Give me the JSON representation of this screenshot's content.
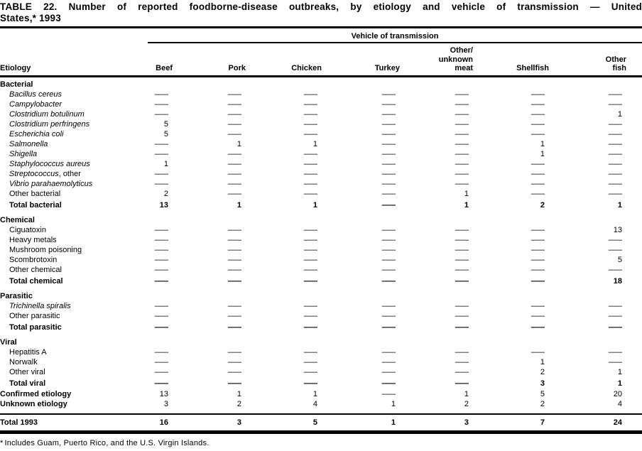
{
  "title": {
    "line1": "TABLE 22. Number of reported foodborne-disease outbreaks, by etiology and vehicle of transmission — United",
    "line2": "States,* 1993"
  },
  "footnote": {
    "marker": "*",
    "text": "Includes Guam, Puerto Rico, and the U.S. Virgin Islands."
  },
  "table": {
    "span_header": "Vehicle of transmission",
    "row_header": "Etiology",
    "columns": [
      {
        "key": "beef",
        "lines": [
          "Beef"
        ]
      },
      {
        "key": "pork",
        "lines": [
          "Pork"
        ]
      },
      {
        "key": "chicken",
        "lines": [
          "Chicken"
        ]
      },
      {
        "key": "turkey",
        "lines": [
          "Turkey"
        ]
      },
      {
        "key": "other-unknown-meat",
        "lines": [
          "Other/",
          "unknown",
          "meat"
        ]
      },
      {
        "key": "shellfish",
        "lines": [
          "Shellfish"
        ]
      },
      {
        "key": "other-fish",
        "lines": [
          "Other",
          "fish"
        ]
      }
    ],
    "sections": [
      {
        "header": "Bacterial",
        "rows": [
          {
            "italic": "Bacillus cereus",
            "roman": "",
            "total": false,
            "values": [
              "—",
              "—",
              "—",
              "—",
              "—",
              "—",
              "—"
            ]
          },
          {
            "italic": "Campylobacter",
            "roman": "",
            "total": false,
            "values": [
              "—",
              "—",
              "—",
              "—",
              "—",
              "—",
              "—"
            ]
          },
          {
            "italic": "Clostridium botulinum",
            "roman": "",
            "total": false,
            "values": [
              "—",
              "—",
              "—",
              "—",
              "—",
              "—",
              "1"
            ]
          },
          {
            "italic": "Clostridium perfringens",
            "roman": "",
            "total": false,
            "values": [
              "5",
              "—",
              "—",
              "—",
              "—",
              "—",
              "—"
            ]
          },
          {
            "italic": "Escherichia coli",
            "roman": "",
            "total": false,
            "values": [
              "5",
              "—",
              "—",
              "—",
              "—",
              "—",
              "—"
            ]
          },
          {
            "italic": "Salmonella",
            "roman": "",
            "total": false,
            "values": [
              "—",
              "1",
              "1",
              "—",
              "—",
              "1",
              "—"
            ]
          },
          {
            "italic": "Shigella",
            "roman": "",
            "total": false,
            "values": [
              "—",
              "—",
              "—",
              "—",
              "—",
              "1",
              "—"
            ]
          },
          {
            "italic": "Staphylococcus aureus",
            "roman": "",
            "total": false,
            "values": [
              "1",
              "—",
              "—",
              "—",
              "—",
              "—",
              "—"
            ]
          },
          {
            "italic": "Streptococcus",
            "roman": ", other",
            "total": false,
            "values": [
              "—",
              "—",
              "—",
              "—",
              "—",
              "—",
              "—"
            ]
          },
          {
            "italic": "Vibrio parahaemolyticus",
            "roman": "",
            "total": false,
            "values": [
              "—",
              "—",
              "—",
              "—",
              "—",
              "—",
              "—"
            ]
          },
          {
            "italic": "",
            "roman": "Other bacterial",
            "total": false,
            "values": [
              "2",
              "—",
              "—",
              "—",
              "1",
              "—",
              "—"
            ]
          },
          {
            "italic": "",
            "roman": "Total bacterial",
            "total": true,
            "values": [
              "13",
              "1",
              "1",
              "—",
              "1",
              "2",
              "1"
            ]
          }
        ]
      },
      {
        "header": "Chemical",
        "rows": [
          {
            "italic": "",
            "roman": "Ciguatoxin",
            "total": false,
            "values": [
              "—",
              "—",
              "—",
              "—",
              "—",
              "—",
              "13"
            ]
          },
          {
            "italic": "",
            "roman": "Heavy metals",
            "total": false,
            "values": [
              "—",
              "—",
              "—",
              "—",
              "—",
              "—",
              "—"
            ]
          },
          {
            "italic": "",
            "roman": "Mushroom poisoning",
            "total": false,
            "values": [
              "—",
              "—",
              "—",
              "—",
              "—",
              "—",
              "—"
            ]
          },
          {
            "italic": "",
            "roman": "Scombrotoxin",
            "total": false,
            "values": [
              "—",
              "—",
              "—",
              "—",
              "—",
              "—",
              "5"
            ]
          },
          {
            "italic": "",
            "roman": "Other chemical",
            "total": false,
            "values": [
              "—",
              "—",
              "—",
              "—",
              "—",
              "—",
              "—"
            ]
          },
          {
            "italic": "",
            "roman": "Total chemical",
            "total": true,
            "values": [
              "—",
              "—",
              "—",
              "—",
              "—",
              "—",
              "18"
            ]
          }
        ]
      },
      {
        "header": "Parasitic",
        "rows": [
          {
            "italic": "Trichinella spiralis",
            "roman": "",
            "total": false,
            "values": [
              "—",
              "—",
              "—",
              "—",
              "—",
              "—",
              "—"
            ]
          },
          {
            "italic": "",
            "roman": "Other parasitic",
            "total": false,
            "values": [
              "—",
              "—",
              "—",
              "—",
              "—",
              "—",
              "—"
            ]
          },
          {
            "italic": "",
            "roman": "Total parasitic",
            "total": true,
            "values": [
              "—",
              "—",
              "—",
              "—",
              "—",
              "—",
              "—"
            ]
          }
        ]
      },
      {
        "header": "Viral",
        "rows": [
          {
            "italic": "",
            "roman": "Hepatitis A",
            "total": false,
            "values": [
              "—",
              "—",
              "—",
              "—",
              "—",
              "—",
              "—"
            ]
          },
          {
            "italic": "",
            "roman": "Norwalk",
            "total": false,
            "values": [
              "—",
              "—",
              "—",
              "—",
              "—",
              "1",
              "—"
            ]
          },
          {
            "italic": "",
            "roman": "Other viral",
            "total": false,
            "values": [
              "—",
              "—",
              "—",
              "—",
              "—",
              "2",
              "1"
            ]
          },
          {
            "italic": "",
            "roman": "Total viral",
            "total": true,
            "values": [
              "—",
              "—",
              "—",
              "—",
              "—",
              "3",
              "1"
            ]
          }
        ]
      }
    ],
    "summary_rows": [
      {
        "italic": "",
        "roman": "Confirmed etiology",
        "values": [
          "13",
          "1",
          "1",
          "—",
          "1",
          "5",
          "20"
        ]
      },
      {
        "italic": "",
        "roman": "Unknown etiology",
        "values": [
          "3",
          "2",
          "4",
          "1",
          "2",
          "2",
          "4"
        ]
      }
    ],
    "grand_total": {
      "italic": "",
      "roman": "Total 1993",
      "values": [
        "16",
        "3",
        "5",
        "1",
        "3",
        "7",
        "24"
      ]
    }
  }
}
